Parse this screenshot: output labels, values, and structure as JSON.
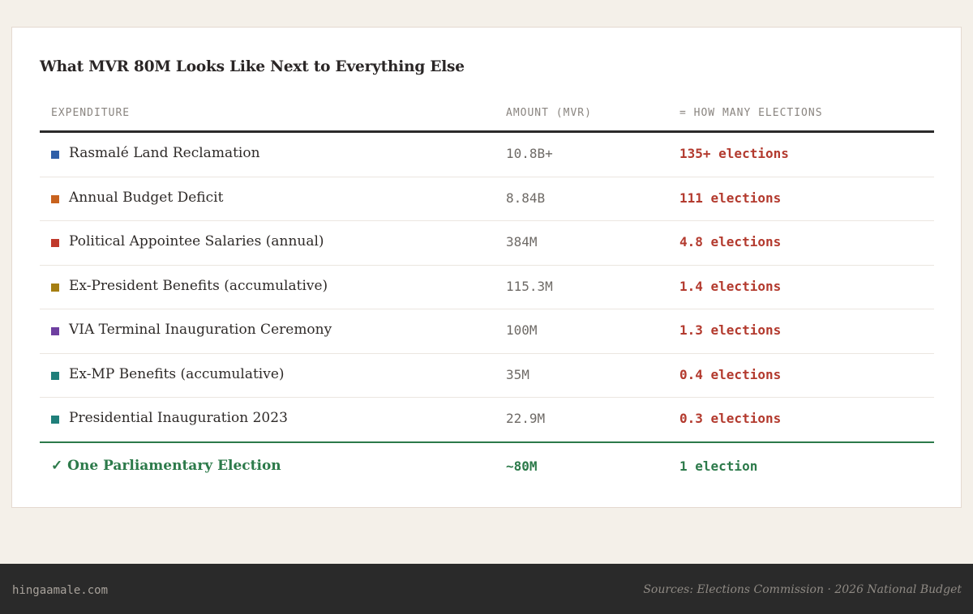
{
  "title": "What MVR 80M Looks Like Next to Everything Else",
  "columns": {
    "expenditure": "EXPENDITURE",
    "amount": "AMOUNT (MVR)",
    "elections": "= HOW MANY ELECTIONS"
  },
  "rows": [
    {
      "name": "Rasmalé Land Reclamation",
      "amount": "10.8B+",
      "elections": "135+ elections",
      "color": "#2f5fa8"
    },
    {
      "name": "Annual Budget Deficit",
      "amount": "8.84B",
      "elections": "111 elections",
      "color": "#c8621e"
    },
    {
      "name": "Political Appointee Salaries (annual)",
      "amount": "384M",
      "elections": "4.8 elections",
      "color": "#c0392b"
    },
    {
      "name": "Ex-President Benefits (accumulative)",
      "amount": "115.3M",
      "elections": "1.4 elections",
      "color": "#a57e12"
    },
    {
      "name": "VIA Terminal Inauguration Ceremony",
      "amount": "100M",
      "elections": "1.3 elections",
      "color": "#6e3fa0"
    },
    {
      "name": "Ex-MP Benefits (accumulative)",
      "amount": "35M",
      "elections": "0.4 elections",
      "color": "#1f7f7a"
    },
    {
      "name": "Presidential Inauguration 2023",
      "amount": "22.9M",
      "elections": "0.3 elections",
      "color": "#1f7f7a"
    }
  ],
  "total": {
    "name": "✓ One Parliamentary Election",
    "amount": "~80M",
    "elections": "1 election",
    "color": "#2c7a4a"
  },
  "footer": {
    "site": "hingaamale.com",
    "sources": "Sources: Elections Commission · 2026 National Budget"
  }
}
